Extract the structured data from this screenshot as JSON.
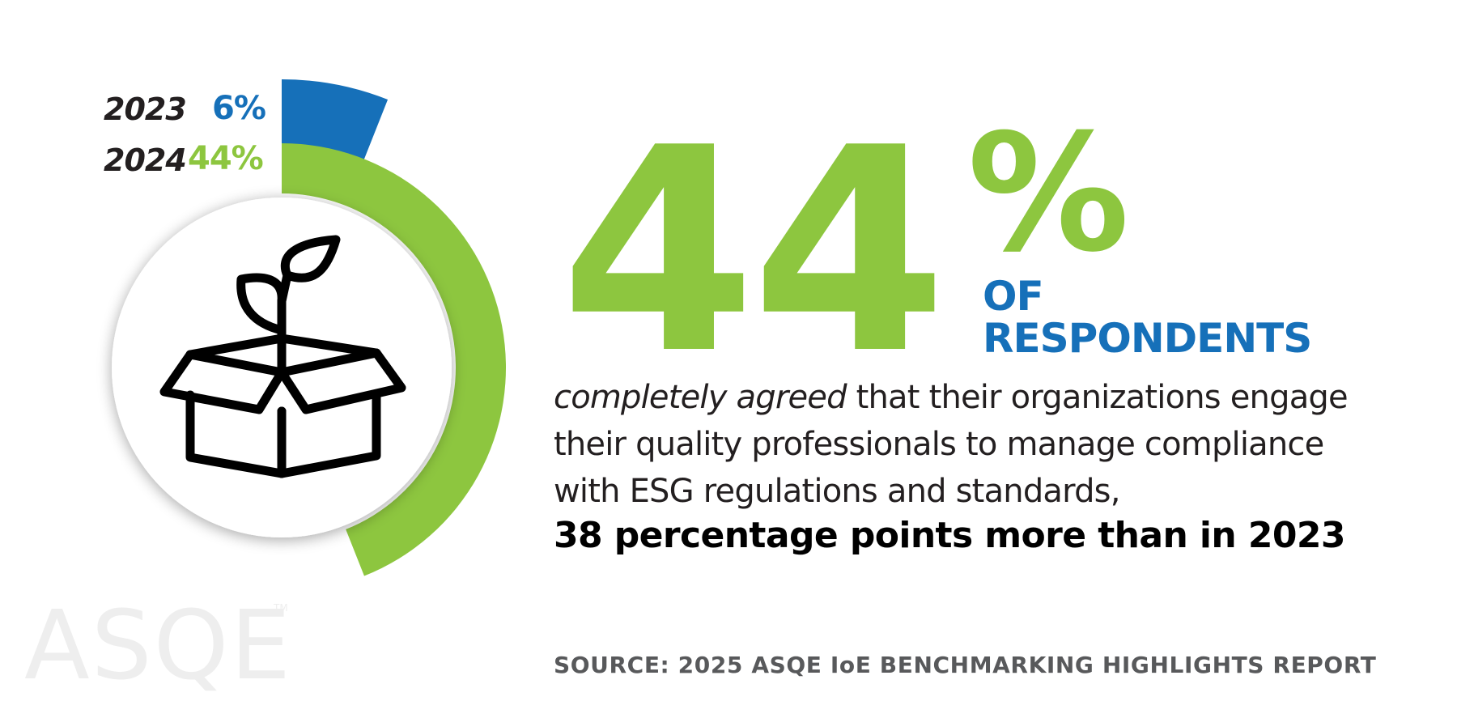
{
  "chart_data": {
    "type": "bar",
    "categories": [
      "2023",
      "2024"
    ],
    "values": [
      6,
      44
    ],
    "value_labels": [
      "6%",
      "44%"
    ],
    "ylim": [
      0,
      100
    ],
    "colors": [
      "#1670b9",
      "#8dc63f"
    ]
  },
  "headline": {
    "number": "44",
    "percent_sign": "%",
    "of_line": "OF",
    "respondents_line": "RESPONDENTS"
  },
  "body": {
    "emphasis": "completely agreed",
    "line1_rest": " that their organizations engage",
    "line2": "their quality professionals to manage compliance",
    "line3": "with ESG regulations and standards,",
    "highlight": "38 percentage points more than in 2023"
  },
  "source": "SOURCE: 2025 ASQE IoE BENCHMARKING HIGHLIGHTS REPORT",
  "logo": {
    "text": "ASQE",
    "tm": "TM"
  },
  "icon": "plant-in-box-icon",
  "colors": {
    "green": "#8dc63f",
    "blue": "#1670b9",
    "text": "#231f20",
    "source_gray": "#58595b"
  }
}
